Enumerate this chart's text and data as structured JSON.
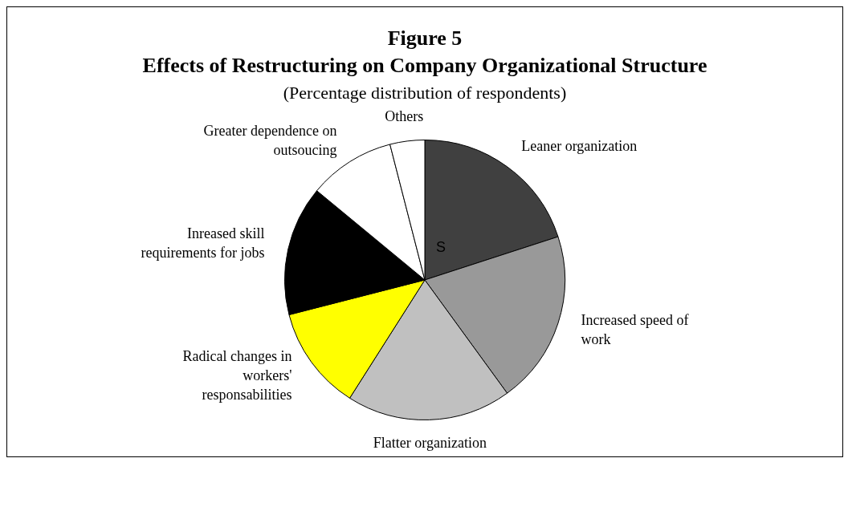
{
  "chart_data": {
    "type": "pie",
    "title": "Effects of Restructuring on Company Organizational Structure",
    "subtitle": "(Percentage distribution of respondents)",
    "annotations": [
      "Figure 5",
      "S"
    ],
    "categories": [
      "Leaner organization",
      "Increased speed of work",
      "Flatter organization",
      "Radical changes in workers' responsabilities",
      "Inreased skill requirements for jobs",
      "Greater dependence on outsoucing",
      "Others"
    ],
    "values": [
      20,
      20,
      19,
      12,
      15,
      10,
      4
    ],
    "colors": [
      "#404040",
      "#999999",
      "#c0c0c0",
      "#ffff00",
      "#000000",
      "#ffffff",
      "#ffffff"
    ],
    "legend": false
  }
}
